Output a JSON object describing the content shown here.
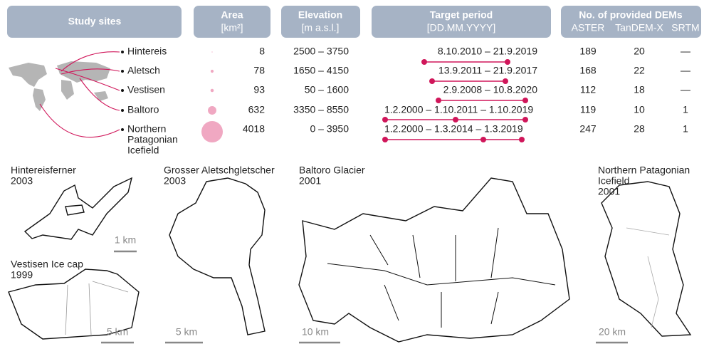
{
  "header": {
    "study_sites": "Study sites",
    "area": {
      "title": "Area",
      "unit": "[km²]"
    },
    "elevation": {
      "title": "Elevation",
      "unit": "[m a.s.l.]"
    },
    "target_period": {
      "title": "Target period",
      "unit": "[DD.MM.YYYY]"
    },
    "dems": {
      "title": "No. of provided DEMs",
      "columns": [
        "ASTER",
        "TanDEM-X",
        "SRTM"
      ]
    }
  },
  "table": {
    "rows": [
      {
        "site": [
          "Hintereis"
        ],
        "area": 8,
        "elevation": "2500 – 3750",
        "period": "8.10.2010 – 21.9.2019",
        "dems": [
          189,
          20,
          "—"
        ]
      },
      {
        "site": [
          "Aletsch"
        ],
        "area": 78,
        "elevation": "1650 – 4150",
        "period": "13.9.2011 – 21.9.2017",
        "dems": [
          168,
          22,
          "—"
        ]
      },
      {
        "site": [
          "Vestisen"
        ],
        "area": 93,
        "elevation": "50 – 1600",
        "period": "2.9.2008 – 10.8.2020",
        "dems": [
          112,
          18,
          "—"
        ]
      },
      {
        "site": [
          "Baltoro"
        ],
        "area": 632,
        "elevation": "3350 – 8550",
        "period": "1.2.2000 – 1.10.2011 – 1.10.2019",
        "dems": [
          119,
          10,
          1
        ]
      },
      {
        "site": [
          "Northern",
          "Patagonian",
          "Icefield"
        ],
        "area": 4018,
        "elevation": "0 – 3950",
        "period": "1.2.2000 – 1.3.2014 – 1.3.2019",
        "dems": [
          247,
          28,
          1
        ]
      }
    ]
  },
  "panels": [
    {
      "name": [
        "Hintereisferner",
        "2003"
      ],
      "scale": "1 km"
    },
    {
      "name": [
        "Vestisen Ice cap",
        "1999"
      ],
      "scale": "5 km"
    },
    {
      "name": [
        "Grosser Aletschgletscher",
        "2003"
      ],
      "scale": "5 km"
    },
    {
      "name": [
        "Baltoro Glacier",
        "2001"
      ],
      "scale": "10 km"
    },
    {
      "name": [
        "Northern Patagonian",
        "Icefield",
        "2001"
      ],
      "scale": "20 km"
    }
  ]
}
